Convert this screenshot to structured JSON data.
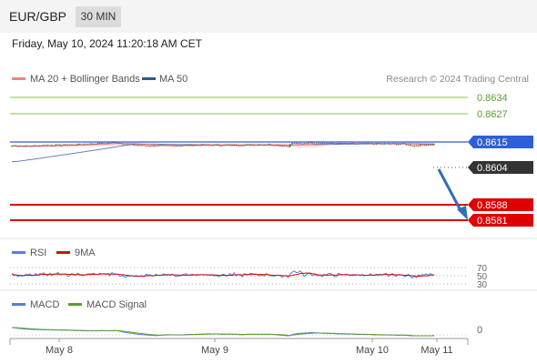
{
  "header": {
    "symbol": "EUR/GBP",
    "timeframe": "30 MIN",
    "timestamp": "Friday, May 10, 2024 11:20:18 AM CET"
  },
  "legend": {
    "ma20": "MA 20 + Bollinger Bands",
    "ma50": "MA 50",
    "credit": "Research © 2024 Trading Central",
    "rsi": "RSI",
    "rsi_ma": "9MA",
    "macd": "MACD",
    "macd_signal": "MACD Signal"
  },
  "colors": {
    "ma20": "#f08080",
    "ma50": "#2f5597",
    "bollinger_fill": "#fde2e2",
    "resistance": "#8cc63f",
    "pivot": "#2f5fd6",
    "support": "#e00000",
    "candle_up": "#1e8449",
    "candle_down": "#c0392b",
    "arrow": "#2e6fb7",
    "rsi": "#5b7fd6",
    "rsi_ma": "#d01010",
    "macd": "#5b7fd6",
    "macd_signal": "#5aa02c"
  },
  "chart_data": {
    "type": "candlestick",
    "instrument": "EUR/GBP",
    "timeframe": "30 MIN",
    "x_ticks": [
      "May 8",
      "May 9",
      "May 10",
      "May 11"
    ],
    "levels": [
      {
        "label": "0.8634",
        "value": 0.8634,
        "kind": "resistance"
      },
      {
        "label": "0.8627",
        "value": 0.8627,
        "kind": "resistance"
      },
      {
        "label": "0.8615",
        "value": 0.8615,
        "kind": "pivot"
      },
      {
        "label": "0.8604",
        "value": 0.8604,
        "kind": "last_price"
      },
      {
        "label": "0.8588",
        "value": 0.8588,
        "kind": "support"
      },
      {
        "label": "0.8581",
        "value": 0.8581,
        "kind": "support"
      }
    ],
    "y_range": [
      0.8575,
      0.8641
    ],
    "price_anchors": [
      [
        0,
        0.8598
      ],
      [
        8,
        0.8596
      ],
      [
        16,
        0.86
      ],
      [
        24,
        0.8601
      ],
      [
        32,
        0.8603
      ],
      [
        40,
        0.8607
      ],
      [
        48,
        0.861
      ],
      [
        52,
        0.8613
      ],
      [
        56,
        0.8605
      ],
      [
        62,
        0.8601
      ],
      [
        70,
        0.8598
      ],
      [
        80,
        0.8599
      ],
      [
        90,
        0.8601
      ],
      [
        100,
        0.8602
      ],
      [
        110,
        0.8601
      ],
      [
        120,
        0.8603
      ],
      [
        128,
        0.8604
      ],
      [
        134,
        0.8599
      ],
      [
        138,
        0.8596
      ],
      [
        140,
        0.861
      ],
      [
        144,
        0.8606
      ],
      [
        148,
        0.8612
      ],
      [
        156,
        0.8609
      ],
      [
        164,
        0.8608
      ],
      [
        172,
        0.8607
      ],
      [
        180,
        0.8607
      ],
      [
        190,
        0.8606
      ],
      [
        196,
        0.8606
      ],
      [
        200,
        0.8598
      ],
      [
        204,
        0.8601
      ],
      [
        208,
        0.8604
      ],
      [
        211,
        0.8604
      ]
    ],
    "indicators": {
      "rsi": {
        "scale_labels": [
          "70",
          "50",
          "30"
        ],
        "levels": [
          70,
          50,
          30
        ]
      },
      "macd": {
        "scale_labels": [
          "0"
        ],
        "zero": 0
      }
    },
    "forecast": "Arrow from last price pointing down toward 0.8581"
  }
}
